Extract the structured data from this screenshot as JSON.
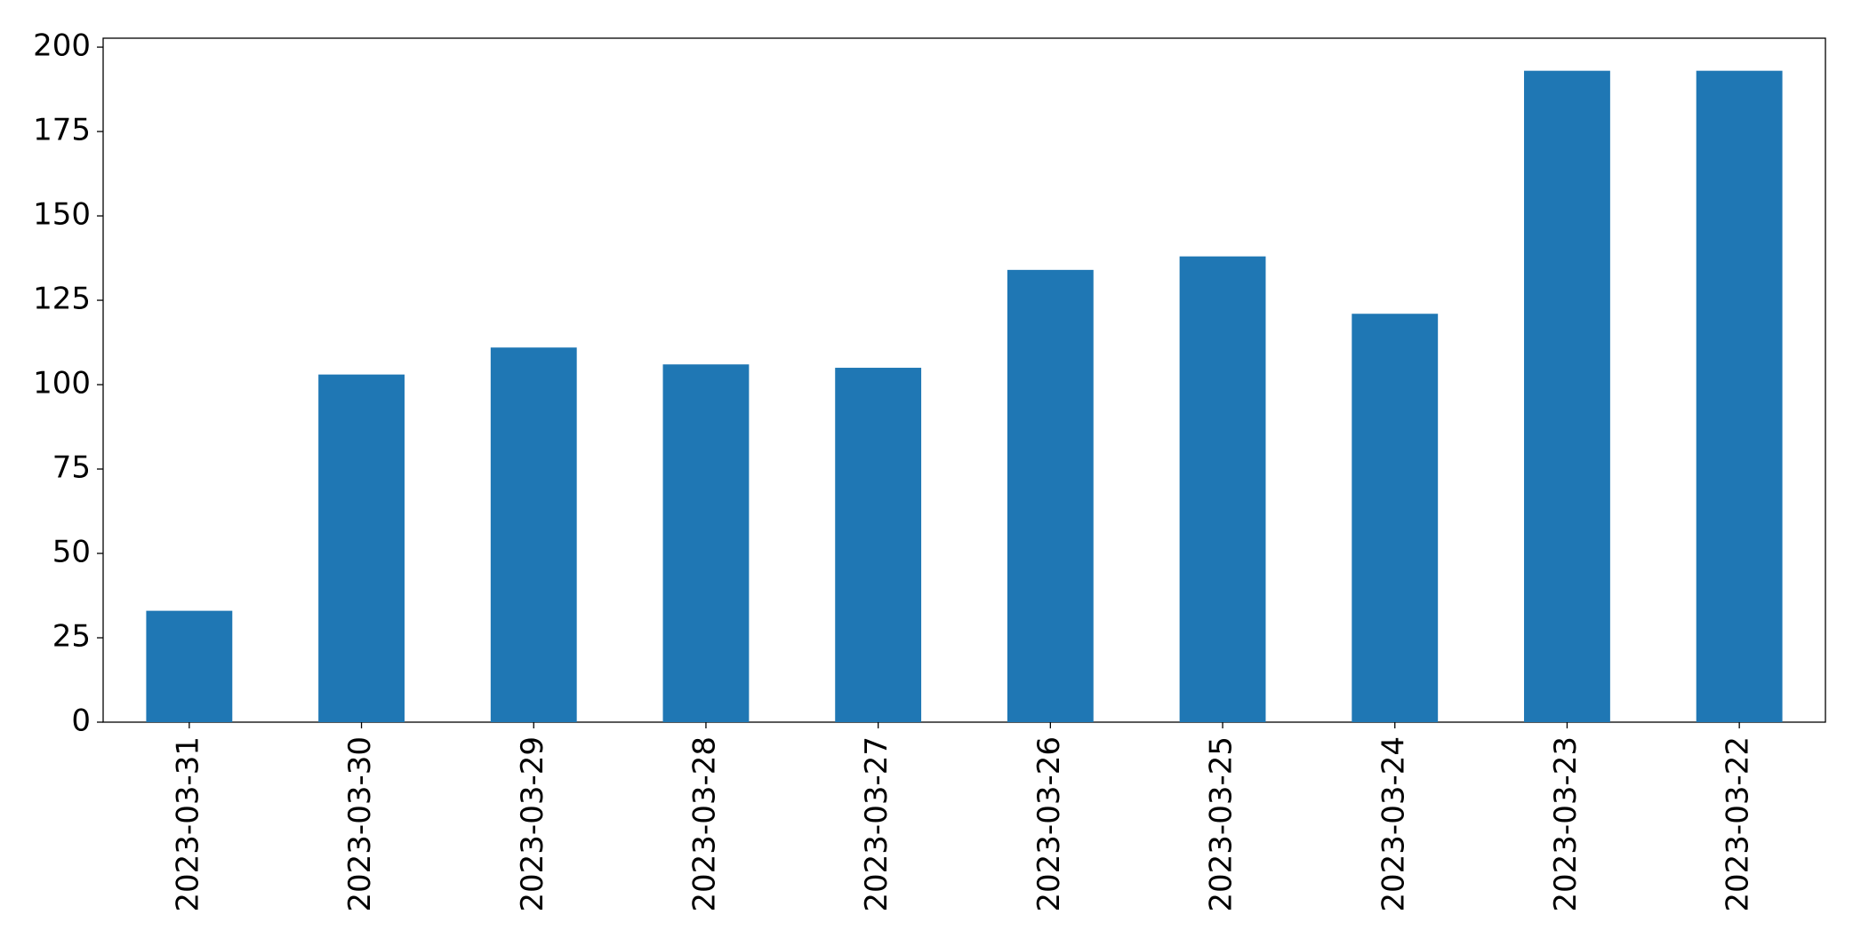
{
  "chart_data": {
    "type": "bar",
    "categories": [
      "2023-03-31",
      "2023-03-30",
      "2023-03-29",
      "2023-03-28",
      "2023-03-27",
      "2023-03-26",
      "2023-03-25",
      "2023-03-24",
      "2023-03-23",
      "2023-03-22"
    ],
    "values": [
      33,
      103,
      111,
      106,
      105,
      134,
      138,
      121,
      193,
      193
    ],
    "color": "#1f77b4",
    "ylim": [
      0,
      202.65
    ],
    "yticks": [
      0,
      25,
      50,
      75,
      100,
      125,
      150,
      175,
      200
    ],
    "grid": false
  }
}
